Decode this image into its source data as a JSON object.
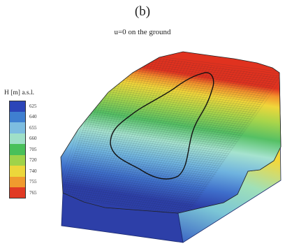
{
  "figure": {
    "panel_label": "(b)",
    "subtitle": "u=0 on the ground"
  },
  "legend": {
    "title": "H [m] a.s.l.",
    "entries": [
      {
        "label": "625",
        "color": "#2c45b8"
      },
      {
        "label": "640",
        "color": "#3f7fd0"
      },
      {
        "label": "655",
        "color": "#7dbde0"
      },
      {
        "label": "660",
        "color": "#9fe0c8"
      },
      {
        "label": "705",
        "color": "#49c05a"
      },
      {
        "label": "720",
        "color": "#9fd34a"
      },
      {
        "label": "740",
        "color": "#ecd73b"
      },
      {
        "label": "755",
        "color": "#f09a2e"
      },
      {
        "label": "765",
        "color": "#e13a24"
      }
    ]
  },
  "colors": {
    "front_face": "#2d3fa8",
    "side_face": "#f4d83a"
  }
}
